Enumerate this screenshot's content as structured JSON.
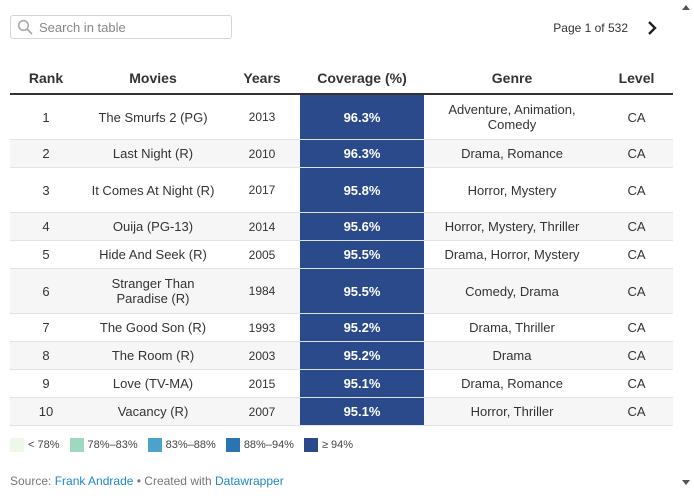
{
  "search": {
    "placeholder": "Search in table"
  },
  "pagination": {
    "label": "Page 1 of 532"
  },
  "table": {
    "headers": [
      "Rank",
      "Movies",
      "Years",
      "Coverage (%)",
      "Genre",
      "Level"
    ],
    "rows": [
      {
        "rank": "1",
        "movie": "The Smurfs 2 (PG)",
        "year": "2013",
        "coverage": "96.3%",
        "genre": "Adventure, Animation, Comedy",
        "level": "CA"
      },
      {
        "rank": "2",
        "movie": "Last Night (R)",
        "year": "2010",
        "coverage": "96.3%",
        "genre": "Drama, Romance",
        "level": "CA"
      },
      {
        "rank": "3",
        "movie": "It Comes At Night (R)",
        "year": "2017",
        "coverage": "95.8%",
        "genre": "Horror, Mystery",
        "level": "CA"
      },
      {
        "rank": "4",
        "movie": "Ouija (PG-13)",
        "year": "2014",
        "coverage": "95.6%",
        "genre": "Horror, Mystery, Thriller",
        "level": "CA"
      },
      {
        "rank": "5",
        "movie": "Hide And Seek (R)",
        "year": "2005",
        "coverage": "95.5%",
        "genre": "Drama, Horror, Mystery",
        "level": "CA"
      },
      {
        "rank": "6",
        "movie": "Stranger Than Paradise (R)",
        "year": "1984",
        "coverage": "95.5%",
        "genre": "Comedy, Drama",
        "level": "CA"
      },
      {
        "rank": "7",
        "movie": "The Good Son (R)",
        "year": "1993",
        "coverage": "95.2%",
        "genre": "Drama, Thriller",
        "level": "CA"
      },
      {
        "rank": "8",
        "movie": "The Room (R)",
        "year": "2003",
        "coverage": "95.2%",
        "genre": "Drama",
        "level": "CA"
      },
      {
        "rank": "9",
        "movie": "Love (TV-MA)",
        "year": "2015",
        "coverage": "95.1%",
        "genre": "Drama, Romance",
        "level": "CA"
      },
      {
        "rank": "10",
        "movie": "Vacancy (R)",
        "year": "2007",
        "coverage": "95.1%",
        "genre": "Horror, Thriller",
        "level": "CA"
      }
    ]
  },
  "legend": [
    {
      "label": "< 78%",
      "color": "#edf8e9"
    },
    {
      "label": "78%–83%",
      "color": "#9fd8bf"
    },
    {
      "label": "83%–88%",
      "color": "#4ba3cc"
    },
    {
      "label": "88%–94%",
      "color": "#2b74b4"
    },
    {
      "label": "≥ 94%",
      "color": "#2a4a8c"
    }
  ],
  "footer": {
    "source_prefix": "Source: ",
    "source_link": "Frank Andrade",
    "separator": " • Created with ",
    "tool_link": "Datawrapper"
  },
  "colors": {
    "coverage_high": "#2a4a8c",
    "link": "#1f87c9"
  }
}
